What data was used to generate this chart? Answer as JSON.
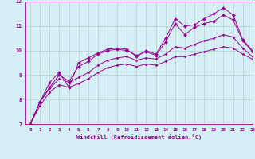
{
  "xlabel": "Windchill (Refroidissement éolien,°C)",
  "xlim": [
    -0.5,
    23
  ],
  "ylim": [
    7,
    12
  ],
  "yticks": [
    7,
    8,
    9,
    10,
    11,
    12
  ],
  "xticks": [
    0,
    1,
    2,
    3,
    4,
    5,
    6,
    7,
    8,
    9,
    10,
    11,
    12,
    13,
    14,
    15,
    16,
    17,
    18,
    19,
    20,
    21,
    22,
    23
  ],
  "background_color": "#d6eef5",
  "line_color": "#990099",
  "grid_color": "#b8d8d0",
  "series_with_markers": [
    [
      7.0,
      7.9,
      8.7,
      9.1,
      8.5,
      9.5,
      9.7,
      9.9,
      10.05,
      10.1,
      10.05,
      9.75,
      10.0,
      9.85,
      10.5,
      11.3,
      11.0,
      11.05,
      11.3,
      11.5,
      11.75,
      11.45,
      10.45,
      10.0
    ],
    [
      7.0,
      7.9,
      8.5,
      9.0,
      8.75,
      9.35,
      9.55,
      9.85,
      10.0,
      10.05,
      10.0,
      9.8,
      9.95,
      9.8,
      10.35,
      11.1,
      10.65,
      10.95,
      11.1,
      11.2,
      11.45,
      11.25,
      10.4,
      9.95
    ]
  ],
  "series_smooth": [
    [
      7.0,
      7.9,
      8.45,
      8.85,
      8.7,
      8.9,
      9.1,
      9.4,
      9.6,
      9.7,
      9.75,
      9.6,
      9.7,
      9.65,
      9.85,
      10.15,
      10.1,
      10.25,
      10.4,
      10.5,
      10.65,
      10.55,
      10.1,
      9.75
    ],
    [
      7.0,
      7.75,
      8.3,
      8.6,
      8.5,
      8.65,
      8.85,
      9.1,
      9.3,
      9.4,
      9.45,
      9.35,
      9.45,
      9.4,
      9.55,
      9.75,
      9.75,
      9.85,
      9.95,
      10.05,
      10.15,
      10.1,
      9.85,
      9.65
    ]
  ]
}
